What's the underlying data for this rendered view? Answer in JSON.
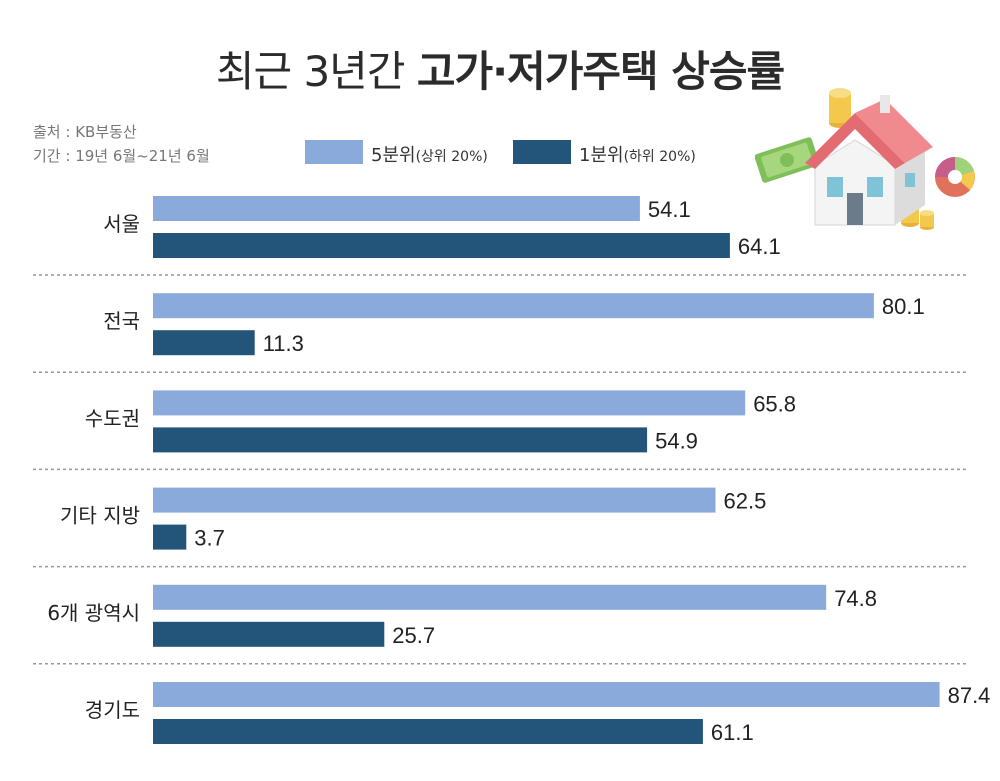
{
  "title_light": "최근 3년간",
  "title_bold": "고가·저가주택 상승률",
  "source": "출처 : KB부동산",
  "period": "기간 : 19년 6월~21년 6월",
  "legend": [
    {
      "main": "5분위",
      "sub": "(상위 20%)",
      "color": "#8aaadb"
    },
    {
      "main": "1분위",
      "sub": "(하위 20%)",
      "color": "#235479"
    }
  ],
  "colors": {
    "high": "#8aaadb",
    "low": "#235479",
    "divider": "#999999"
  },
  "icons": [
    "house-icon",
    "money-icon",
    "coin-stack-icon",
    "pie-chart-icon"
  ],
  "chart_data": {
    "type": "bar",
    "orientation": "horizontal",
    "categories": [
      "서울",
      "전국",
      "수도권",
      "기타 지방",
      "6개 광역시",
      "경기도"
    ],
    "series": [
      {
        "name": "5분위(상위 20%)",
        "values": [
          54.1,
          80.1,
          65.8,
          62.5,
          74.8,
          87.4
        ]
      },
      {
        "name": "1분위(하위 20%)",
        "values": [
          64.1,
          11.3,
          54.9,
          3.7,
          25.7,
          61.1
        ]
      }
    ],
    "title": "최근 3년간 고가·저가주택 상승률",
    "xlim": [
      0,
      100
    ],
    "grid": false,
    "legend_position": "top"
  }
}
